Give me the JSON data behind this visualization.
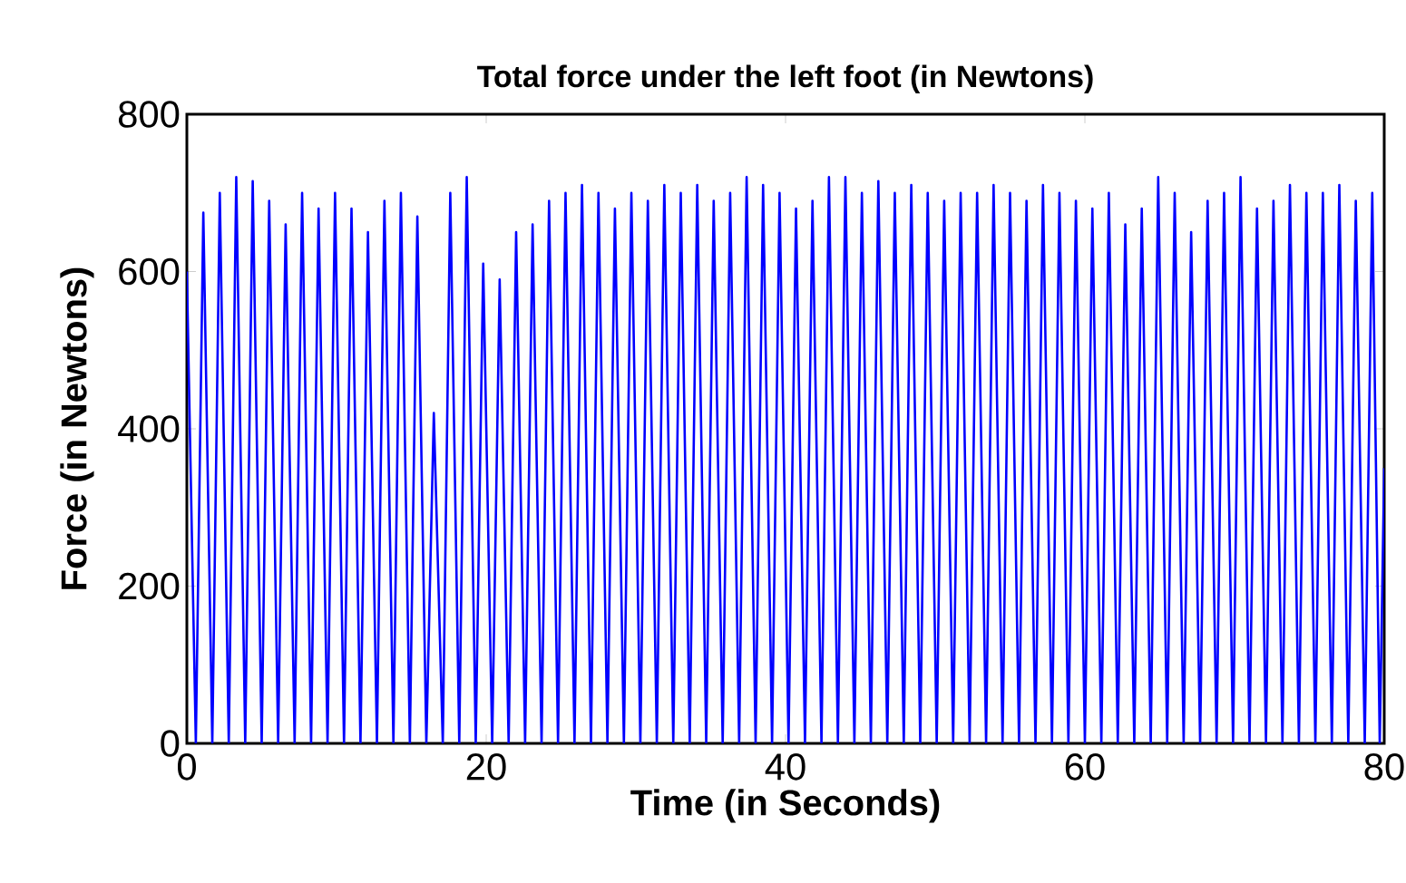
{
  "chart_data": {
    "type": "line",
    "title": "Total force under the left foot (in Newtons)",
    "xlabel": "Time (in Seconds)",
    "ylabel": "Force (in Newtons)",
    "xlim": [
      0,
      80
    ],
    "ylim": [
      0,
      800
    ],
    "xticks": [
      0,
      20,
      40,
      60,
      80
    ],
    "yticks": [
      0,
      200,
      400,
      600,
      800
    ],
    "grid": false,
    "series": [
      {
        "color": "#0000ff",
        "x": [
          0,
          0.6,
          1.1,
          1.7,
          2.2,
          2.8,
          3.3,
          3.9,
          4.4,
          5,
          5.5,
          6.1,
          6.6,
          7.2,
          7.7,
          8.3,
          8.8,
          9.4,
          9.9,
          10.5,
          11,
          11.6,
          12.1,
          12.7,
          13.2,
          13.8,
          14.3,
          14.9,
          15.4,
          16,
          16.5,
          17.1,
          17.6,
          18.2,
          18.7,
          19.3,
          19.8,
          20.4,
          20.9,
          21.5,
          22,
          22.6,
          23.1,
          23.7,
          24.2,
          24.8,
          25.3,
          25.9,
          26.4,
          27,
          27.5,
          28.1,
          28.6,
          29.2,
          29.7,
          30.3,
          30.8,
          31.4,
          31.9,
          32.5,
          33,
          33.6,
          34.1,
          34.7,
          35.2,
          35.8,
          36.3,
          36.9,
          37.4,
          38,
          38.5,
          39.1,
          39.6,
          40.2,
          40.7,
          41.3,
          41.8,
          42.4,
          42.9,
          43.5,
          44,
          44.6,
          45.1,
          45.7,
          46.2,
          46.8,
          47.3,
          47.9,
          48.4,
          49,
          49.5,
          50.1,
          50.6,
          51.2,
          51.7,
          52.3,
          52.8,
          53.4,
          53.9,
          54.5,
          55,
          55.6,
          56.1,
          56.7,
          57.2,
          57.8,
          58.3,
          58.9,
          59.4,
          60,
          60.5,
          61.1,
          61.6,
          62.2,
          62.7,
          63.3,
          63.8,
          64.4,
          64.9,
          65.5,
          66,
          66.6,
          67.1,
          67.7,
          68.2,
          68.8,
          69.3,
          69.9,
          70.4,
          71,
          71.5,
          72.1,
          72.6,
          73.2,
          73.7,
          74.3,
          74.8,
          75.4,
          75.9,
          76.5,
          77,
          77.6,
          78.1,
          78.7,
          79.2,
          79.7,
          80
        ],
        "values": [
          600,
          0,
          675,
          0,
          700,
          0,
          720,
          0,
          715,
          0,
          690,
          0,
          660,
          0,
          700,
          0,
          680,
          0,
          700,
          0,
          680,
          0,
          650,
          0,
          690,
          0,
          700,
          0,
          670,
          0,
          420,
          0,
          700,
          0,
          720,
          0,
          610,
          0,
          590,
          0,
          650,
          0,
          660,
          0,
          690,
          0,
          700,
          0,
          710,
          0,
          700,
          0,
          680,
          0,
          700,
          0,
          690,
          0,
          710,
          0,
          700,
          0,
          710,
          0,
          690,
          0,
          700,
          0,
          720,
          0,
          710,
          0,
          700,
          0,
          680,
          0,
          690,
          0,
          720,
          0,
          720,
          0,
          700,
          0,
          715,
          0,
          700,
          0,
          710,
          0,
          700,
          0,
          690,
          0,
          700,
          0,
          700,
          0,
          710,
          0,
          700,
          0,
          690,
          0,
          710,
          0,
          700,
          0,
          690,
          0,
          680,
          0,
          700,
          0,
          660,
          0,
          680,
          0,
          720,
          0,
          700,
          0,
          650,
          0,
          690,
          0,
          700,
          0,
          720,
          0,
          680,
          0,
          690,
          0,
          710,
          0,
          700,
          0,
          700,
          0,
          710,
          0,
          690,
          0,
          700,
          0,
          350
        ]
      }
    ]
  }
}
